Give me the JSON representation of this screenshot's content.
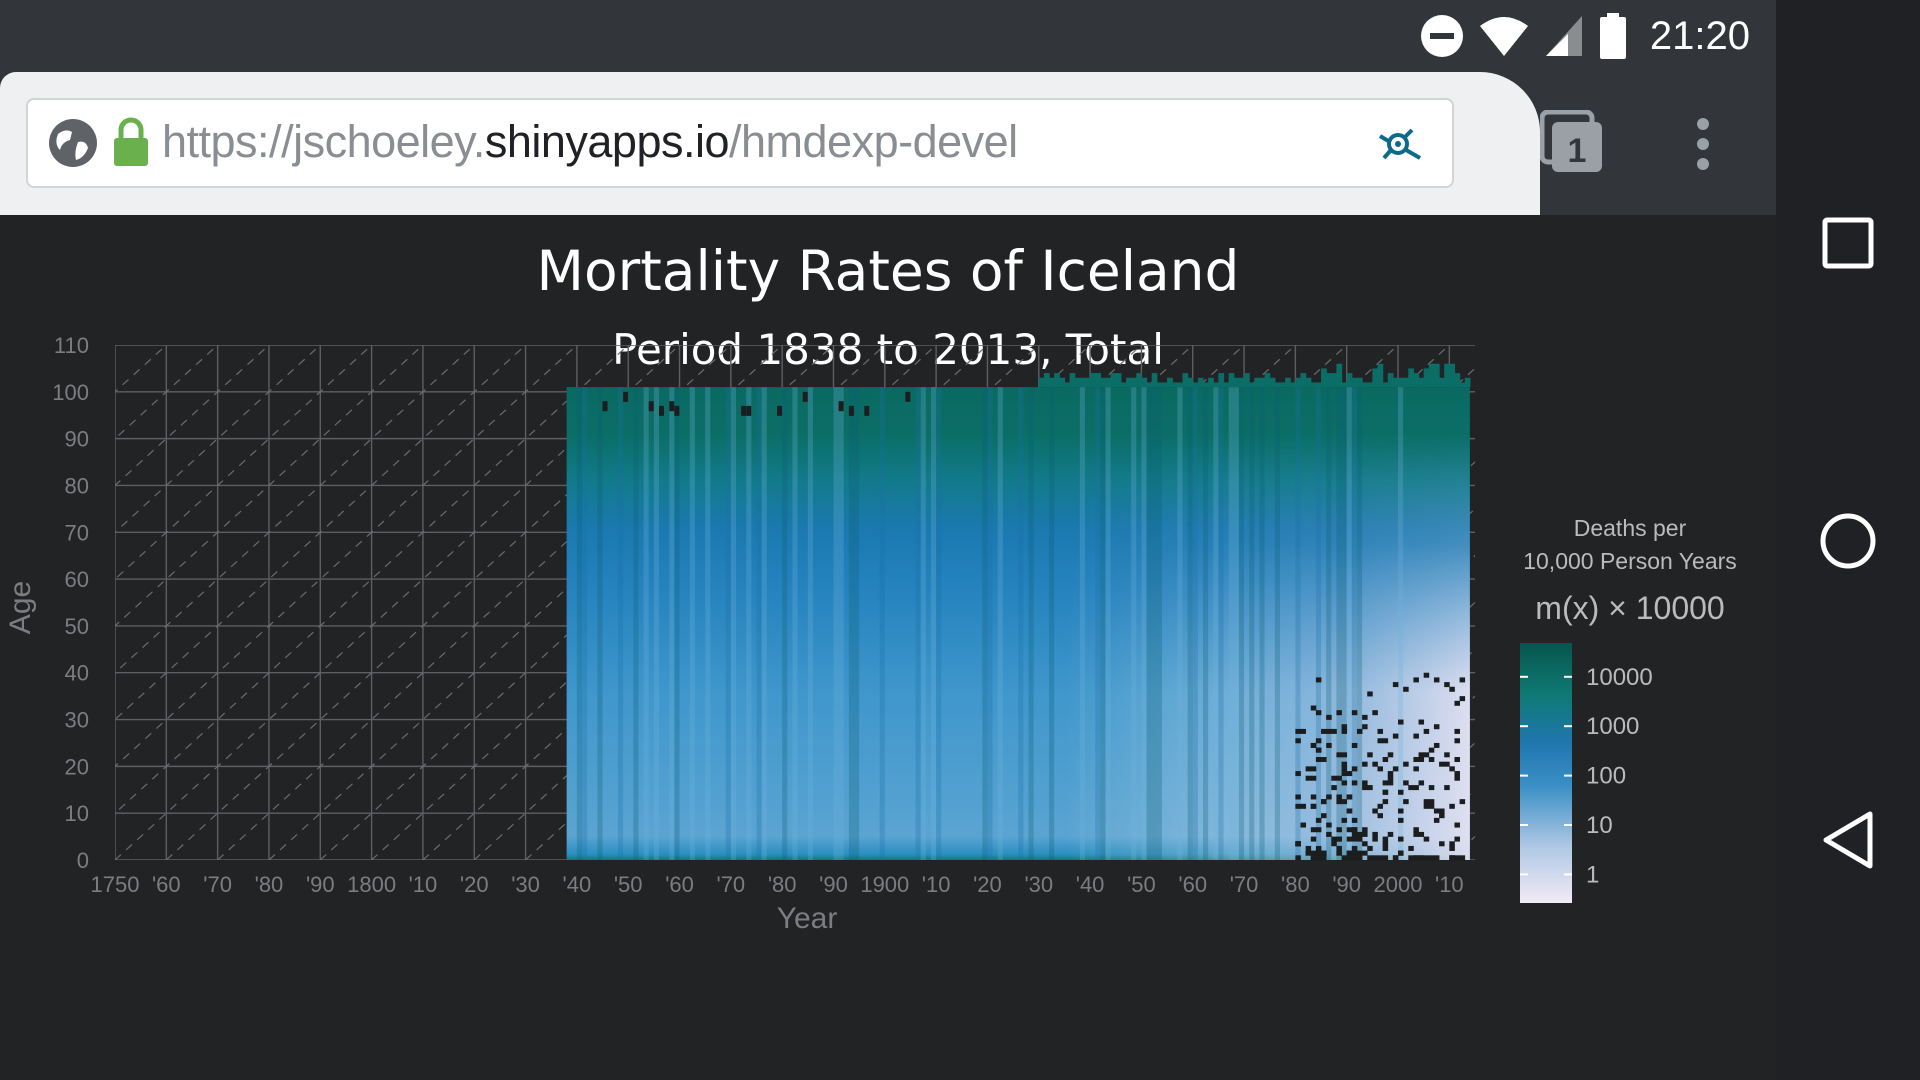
{
  "status_bar": {
    "time": "21:20",
    "icons": [
      "do-not-disturb-icon",
      "wifi-icon",
      "cell-signal-icon",
      "battery-icon"
    ]
  },
  "browser": {
    "url_prefix": "https://jschoeley.",
    "url_domain": "shinyapps.io",
    "url_suffix": "/hmdexp-devel",
    "tab_count": "1",
    "icons": [
      "globe-icon",
      "lock-icon",
      "site-settings-icon",
      "tab-switcher-icon",
      "overflow-menu-icon"
    ]
  },
  "nav_bar": {
    "icons": [
      "recents-icon",
      "home-icon",
      "back-icon"
    ]
  },
  "colors": {
    "panel_bg": "#222325",
    "browser_chrome": "#32363a",
    "scale": [
      "#f3eaf5",
      "#aec7e4",
      "#3a8fc6",
      "#1f76ae",
      "#0f7a74",
      "#05564c"
    ]
  },
  "chart": {
    "title": "Mortality Rates of Iceland",
    "subtitle": "Period 1838 to 2013, Total",
    "xlabel": "Year",
    "ylabel": "Age",
    "legend": {
      "title_line1": "Deaths per",
      "title_line2": "10,000 Person Years",
      "expression": "m(x) × 10000",
      "ticks": [
        "10000",
        "1000",
        "100",
        "10",
        "1"
      ]
    }
  },
  "chart_data": {
    "type": "heatmap",
    "title": "Mortality Rates of Iceland",
    "subtitle": "Period 1838 to 2013, Total",
    "xlabel": "Year",
    "ylabel": "Age",
    "xlim": [
      1750,
      2015
    ],
    "ylim": [
      0,
      110
    ],
    "x_ticks": [
      1750,
      1760,
      1770,
      1780,
      1790,
      1800,
      1810,
      1820,
      1830,
      1840,
      1850,
      1860,
      1870,
      1880,
      1890,
      1900,
      1910,
      1920,
      1930,
      1940,
      1950,
      1960,
      1970,
      1980,
      1990,
      2000,
      2010
    ],
    "x_tick_labels": [
      "1750",
      "'60",
      "'70",
      "'80",
      "'90",
      "1800",
      "'10",
      "'20",
      "'30",
      "'40",
      "'50",
      "'60",
      "'70",
      "'80",
      "'90",
      "1900",
      "'10",
      "'20",
      "'30",
      "'40",
      "'50",
      "'60",
      "'70",
      "'80",
      "'90",
      "2000",
      "'10"
    ],
    "y_ticks": [
      0,
      10,
      20,
      30,
      40,
      50,
      60,
      70,
      80,
      90,
      100,
      110
    ],
    "data_range": {
      "years": [
        1838,
        2013
      ],
      "ages": [
        0,
        100
      ]
    },
    "color_scale": {
      "name": "Deaths per 10,000 Person Years",
      "scale": "log",
      "breaks": [
        1,
        10,
        100,
        1000,
        10000
      ],
      "colors": [
        "#f3eaf5",
        "#aec7e4",
        "#3a8fc6",
        "#1f76ae",
        "#0f7a74",
        "#05564c"
      ]
    },
    "grid": true,
    "diagonal_lexis_lines": true,
    "legend_position": "right"
  }
}
